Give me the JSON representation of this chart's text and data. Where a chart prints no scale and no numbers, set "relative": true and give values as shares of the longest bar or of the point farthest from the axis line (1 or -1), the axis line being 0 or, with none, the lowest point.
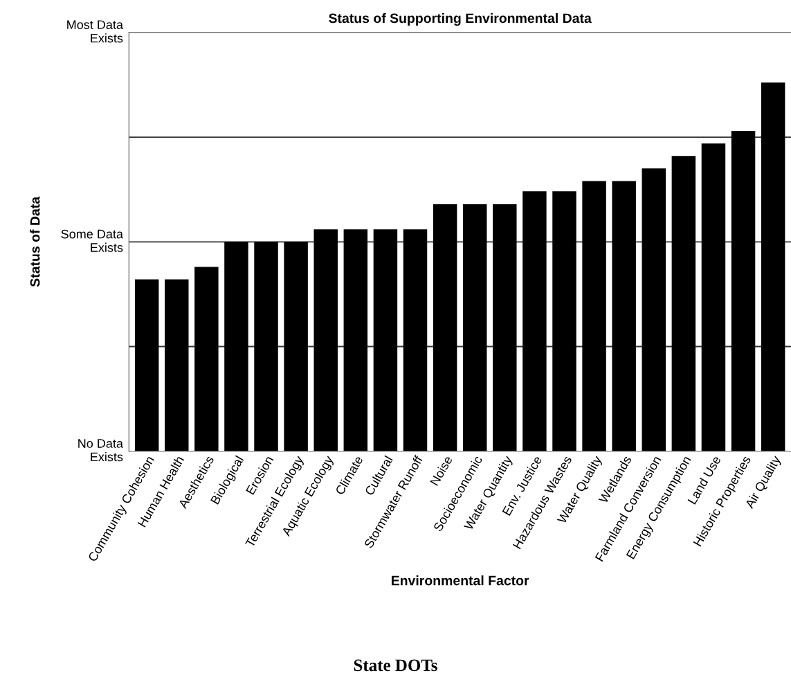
{
  "chart_data": {
    "type": "bar",
    "title": "Status of Supporting Environmental Data",
    "xlabel": "Environmental Factor",
    "ylabel": "Status of Data",
    "categories": [
      "Community Cohesion",
      "Human Health",
      "Aesthetics",
      "Biological",
      "Erosion",
      "Terrestrial Ecology",
      "Aquatic Ecology",
      "Climate",
      "Cultural",
      "Stormwater Runoff",
      "Noise",
      "Socioeconomic",
      "Water Quantity",
      "Env. Justice",
      "Hazardous Wastes",
      "Water Quality",
      "Wetlands",
      "Farmland Conversion",
      "Energy Consumption",
      "Land Use",
      "Historic Properties",
      "Air Quality"
    ],
    "values": [
      0.466,
      0.466,
      0.5,
      0.568,
      0.568,
      0.568,
      0.602,
      0.602,
      0.602,
      0.602,
      0.67,
      0.67,
      0.67,
      0.705,
      0.705,
      0.733,
      0.733,
      0.767,
      0.801,
      0.835,
      0.869,
      1.0
    ],
    "color": "#000000",
    "relative": true,
    "ref_lines": [
      {
        "axis": "y",
        "value": 0.284,
        "color": "#333333"
      },
      {
        "axis": "y",
        "value": 0.568,
        "color": "#333333"
      },
      {
        "axis": "y",
        "value": 0.852,
        "color": "#333333"
      }
    ],
    "annotations": [
      "No Data\nExists",
      "Some Data\nExists",
      "Most Data\nExists",
      "State DOTs"
    ]
  }
}
